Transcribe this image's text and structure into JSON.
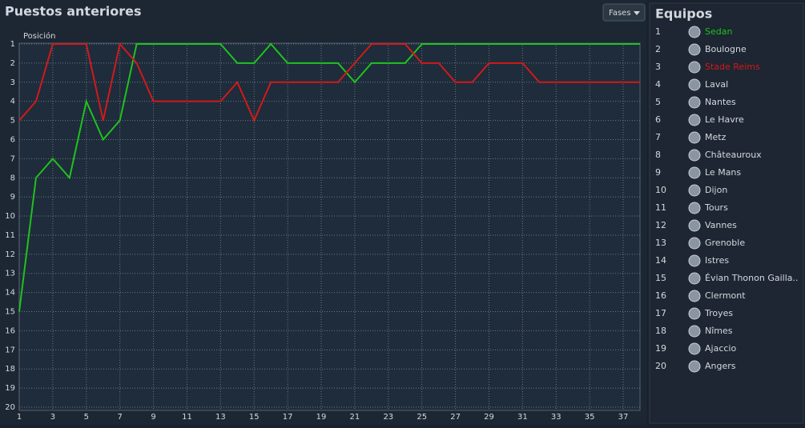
{
  "header": {
    "title": "Puestos anteriores",
    "button": "Fases"
  },
  "chart_data": {
    "type": "line",
    "y_label": "Posición",
    "x": [
      1,
      2,
      3,
      4,
      5,
      6,
      7,
      8,
      9,
      10,
      11,
      12,
      13,
      14,
      15,
      16,
      17,
      18,
      19,
      20,
      21,
      22,
      23,
      24,
      25,
      26,
      27,
      28,
      29,
      30,
      31,
      32,
      33,
      34,
      35,
      36,
      37,
      38
    ],
    "series": [
      {
        "name": "Sedan",
        "color": "#1fc21f",
        "values": [
          15,
          8,
          7,
          8,
          4,
          6,
          5,
          1,
          1,
          1,
          1,
          1,
          1,
          2,
          2,
          1,
          2,
          2,
          2,
          2,
          3,
          2,
          2,
          2,
          1,
          1,
          1,
          1,
          1,
          1,
          1,
          1,
          1,
          1,
          1,
          1,
          1,
          1
        ]
      },
      {
        "name": "Stade Reims",
        "color": "#d11a1a",
        "values": [
          5,
          4,
          1,
          1,
          1,
          5,
          1,
          2,
          4,
          4,
          4,
          4,
          4,
          3,
          5,
          3,
          3,
          3,
          3,
          3,
          2,
          1,
          1,
          1,
          2,
          2,
          3,
          3,
          2,
          2,
          2,
          3,
          3,
          3,
          3,
          3,
          3,
          3
        ]
      }
    ],
    "xlim": [
      1,
      38
    ],
    "xticks": [
      1,
      3,
      5,
      7,
      9,
      11,
      13,
      15,
      17,
      19,
      21,
      23,
      25,
      27,
      29,
      31,
      33,
      35,
      37
    ],
    "ylim": [
      20,
      1
    ],
    "yticks": [
      1,
      2,
      3,
      4,
      5,
      6,
      7,
      8,
      9,
      10,
      11,
      12,
      13,
      14,
      15,
      16,
      17,
      18,
      19,
      20
    ],
    "grid": true
  },
  "teams_panel": {
    "title": "Equipos",
    "rows": [
      {
        "rank": 1
      },
      {
        "rank": 2,
        "name": "Boulogne"
      },
      {
        "rank": 3
      },
      {
        "rank": 4,
        "name": "Laval"
      },
      {
        "rank": 5,
        "name": "Nantes"
      },
      {
        "rank": 6,
        "name": "Le Havre"
      },
      {
        "rank": 7,
        "name": "Metz"
      },
      {
        "rank": 8,
        "name": "Châteauroux"
      },
      {
        "rank": 9,
        "name": "Le Mans"
      },
      {
        "rank": 10,
        "name": "Dijon"
      },
      {
        "rank": 11,
        "name": "Tours"
      },
      {
        "rank": 12,
        "name": "Vannes"
      },
      {
        "rank": 13,
        "name": "Grenoble"
      },
      {
        "rank": 14,
        "name": "Istres"
      },
      {
        "rank": 15,
        "name": "Évian Thonon Gailla.."
      },
      {
        "rank": 16,
        "name": "Clermont"
      },
      {
        "rank": 17,
        "name": "Troyes"
      },
      {
        "rank": 18,
        "name": "Nîmes"
      },
      {
        "rank": 19,
        "name": "Ajaccio"
      },
      {
        "rank": 20,
        "name": "Angers"
      }
    ]
  }
}
